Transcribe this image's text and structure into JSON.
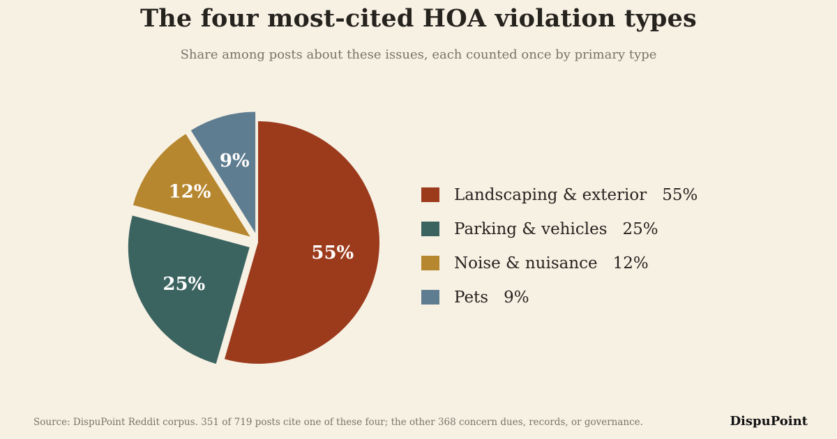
{
  "chart_data": {
    "type": "pie",
    "title": "The four most-cited HOA violation types",
    "subtitle": "Share among posts about these issues, each counted once by primary type",
    "slices": [
      {
        "name": "Landscaping & exterior",
        "value": 55,
        "label": "55%",
        "color": "#9c3a1c",
        "exploded": false
      },
      {
        "name": "Parking & vehicles",
        "value": 25,
        "label": "25%",
        "color": "#3b6360",
        "exploded": true
      },
      {
        "name": "Noise & nuisance",
        "value": 12,
        "label": "12%",
        "color": "#b7872f",
        "exploded": true
      },
      {
        "name": "Pets",
        "value": 9,
        "label": "9%",
        "color": "#5f7d90",
        "exploded": true
      }
    ],
    "start_angle": "12 o'clock",
    "direction": "clockwise",
    "legend_position": "right"
  },
  "footer": {
    "source": "Source: DispuPoint Reddit corpus. 351 of 719 posts cite one of these four; the other 368 concern dues, records, or governance.",
    "brand": "DispuPoint"
  }
}
